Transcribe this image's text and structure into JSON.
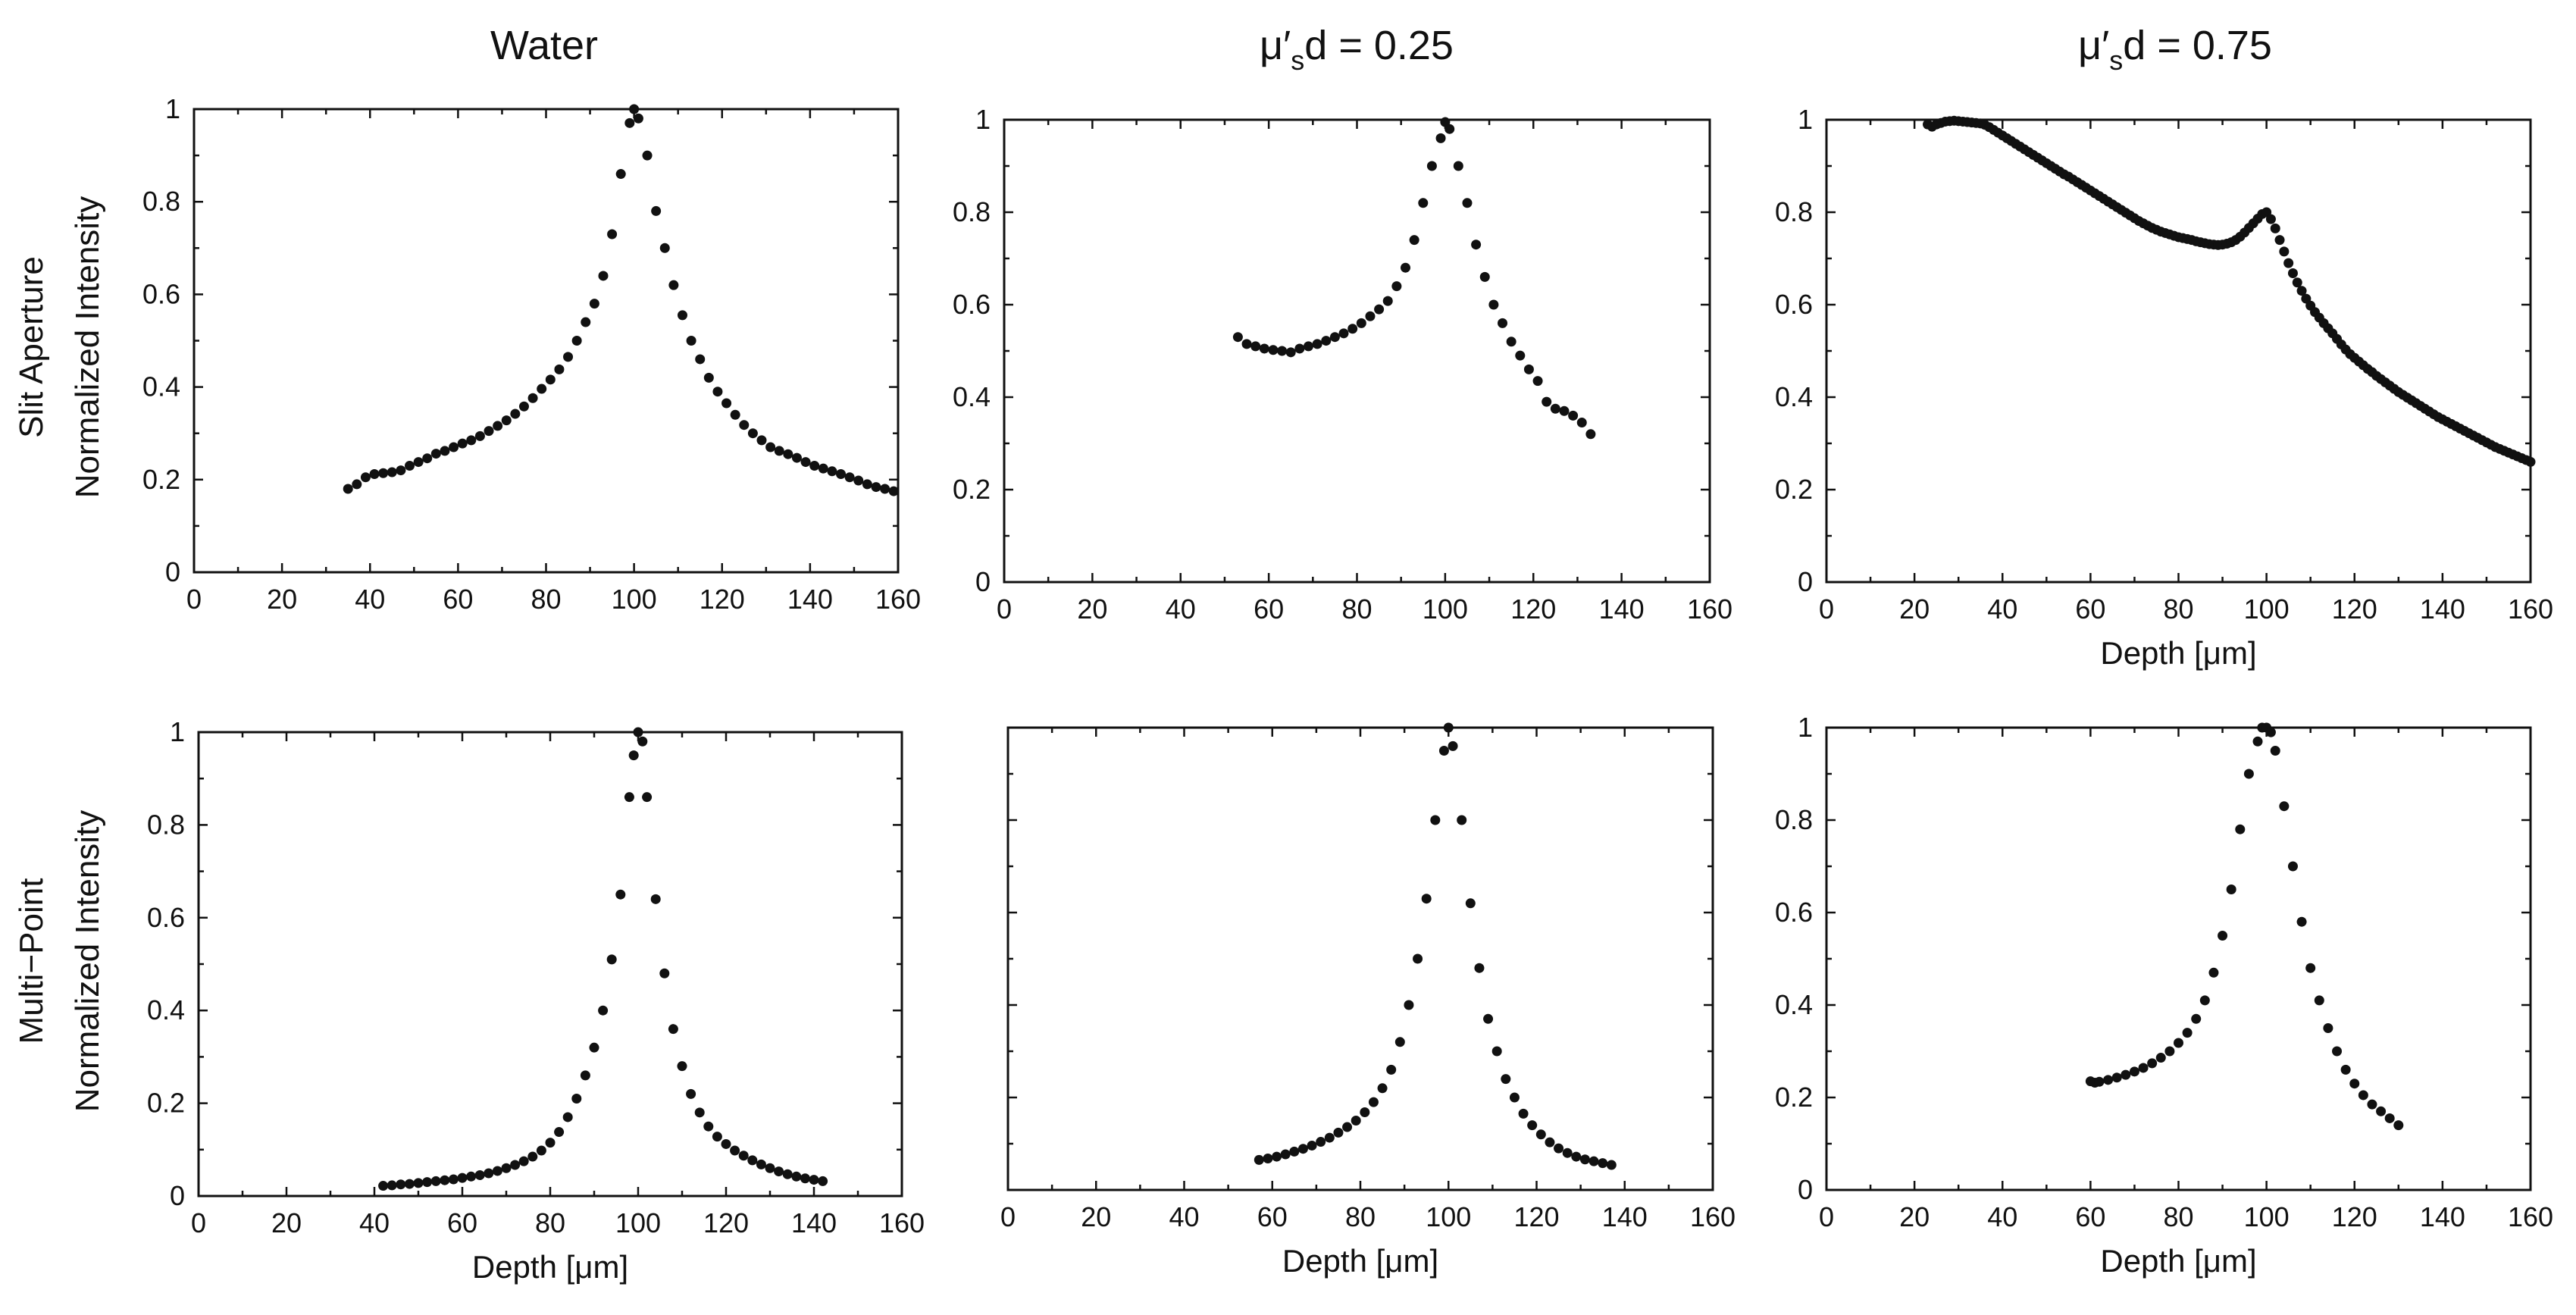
{
  "figure": {
    "column_titles": [
      {
        "text": "Water"
      },
      {
        "prefix": "μ′",
        "sub": "s",
        "suffix": "d = 0.25"
      },
      {
        "prefix": "μ′",
        "sub": "s",
        "suffix": "d = 0.75"
      }
    ],
    "row_labels": [
      [
        "Slit Aperture",
        "Normalized Intensity"
      ],
      [
        "Multi−Point",
        "Normalized Intensity"
      ]
    ]
  },
  "chart_data": [
    {
      "id": "slit-water",
      "type": "scatter",
      "title": "Water",
      "xlabel": "",
      "ylabel": "Normalized Intensity",
      "xlim": [
        0,
        160
      ],
      "ylim": [
        0,
        1
      ],
      "x_step": 20,
      "y_step": 0.2,
      "show_y_ticklabels": true,
      "x": [
        35,
        37,
        39,
        41,
        43,
        45,
        47,
        49,
        51,
        53,
        55,
        57,
        59,
        61,
        63,
        65,
        67,
        69,
        71,
        73,
        75,
        77,
        79,
        81,
        83,
        85,
        87,
        89,
        91,
        93,
        95,
        97,
        99,
        100,
        101,
        103,
        105,
        107,
        109,
        111,
        113,
        115,
        117,
        119,
        121,
        123,
        125,
        127,
        129,
        131,
        133,
        135,
        137,
        139,
        141,
        143,
        145,
        147,
        149,
        151,
        153,
        155,
        157,
        159
      ],
      "y": [
        0.18,
        0.19,
        0.205,
        0.212,
        0.214,
        0.216,
        0.22,
        0.23,
        0.238,
        0.246,
        0.256,
        0.262,
        0.27,
        0.278,
        0.285,
        0.294,
        0.305,
        0.316,
        0.328,
        0.342,
        0.358,
        0.376,
        0.396,
        0.416,
        0.438,
        0.465,
        0.5,
        0.54,
        0.58,
        0.64,
        0.73,
        0.86,
        0.97,
        1.0,
        0.98,
        0.9,
        0.78,
        0.7,
        0.62,
        0.555,
        0.5,
        0.46,
        0.42,
        0.39,
        0.365,
        0.34,
        0.318,
        0.3,
        0.285,
        0.27,
        0.262,
        0.255,
        0.247,
        0.238,
        0.23,
        0.224,
        0.218,
        0.212,
        0.205,
        0.198,
        0.19,
        0.184,
        0.18,
        0.175
      ]
    },
    {
      "id": "slit-025",
      "type": "scatter",
      "title": "μ′sd = 0.25",
      "xlabel": "",
      "ylabel": "",
      "xlim": [
        0,
        160
      ],
      "ylim": [
        0,
        1
      ],
      "x_step": 20,
      "y_step": 0.2,
      "show_y_ticklabels": true,
      "x": [
        53,
        55,
        57,
        59,
        61,
        63,
        65,
        67,
        69,
        71,
        73,
        75,
        77,
        79,
        81,
        83,
        85,
        87,
        89,
        91,
        93,
        95,
        97,
        99,
        100,
        101,
        103,
        105,
        107,
        109,
        111,
        113,
        115,
        117,
        119,
        121,
        123,
        125,
        127,
        129,
        131,
        133
      ],
      "y": [
        0.53,
        0.515,
        0.51,
        0.505,
        0.502,
        0.5,
        0.497,
        0.505,
        0.51,
        0.515,
        0.522,
        0.53,
        0.538,
        0.548,
        0.56,
        0.575,
        0.59,
        0.608,
        0.64,
        0.68,
        0.74,
        0.82,
        0.9,
        0.96,
        0.995,
        0.98,
        0.9,
        0.82,
        0.73,
        0.66,
        0.6,
        0.56,
        0.52,
        0.49,
        0.46,
        0.435,
        0.39,
        0.375,
        0.37,
        0.36,
        0.345,
        0.32
      ]
    },
    {
      "id": "slit-075",
      "type": "scatter",
      "title": "μ′sd = 0.75",
      "xlabel": "Depth [μm]",
      "ylabel": "",
      "xlim": [
        0,
        160
      ],
      "ylim": [
        0,
        1
      ],
      "x_step": 20,
      "y_step": 0.2,
      "show_y_ticklabels": true,
      "x": [
        23,
        24,
        25,
        26,
        27,
        28,
        29,
        30,
        31,
        32,
        33,
        34,
        35,
        36,
        37,
        38,
        39,
        40,
        41,
        42,
        43,
        44,
        45,
        46,
        47,
        48,
        49,
        50,
        51,
        52,
        53,
        54,
        55,
        56,
        57,
        58,
        59,
        60,
        61,
        62,
        63,
        64,
        65,
        66,
        67,
        68,
        69,
        70,
        71,
        72,
        73,
        74,
        75,
        76,
        77,
        78,
        79,
        80,
        81,
        82,
        83,
        84,
        85,
        86,
        87,
        88,
        89,
        90,
        91,
        92,
        93,
        94,
        95,
        96,
        97,
        98,
        99,
        100,
        101,
        102,
        103,
        104,
        105,
        106,
        107,
        108,
        109,
        110,
        111,
        112,
        113,
        114,
        115,
        116,
        117,
        118,
        119,
        120,
        121,
        122,
        123,
        124,
        125,
        126,
        127,
        128,
        129,
        130,
        131,
        132,
        133,
        134,
        135,
        136,
        137,
        138,
        139,
        140,
        141,
        142,
        143,
        144,
        145,
        146,
        147,
        148,
        149,
        150,
        151,
        152,
        153,
        154,
        155,
        156,
        157,
        158,
        159,
        160
      ],
      "y": [
        0.99,
        0.985,
        0.99,
        0.993,
        0.996,
        0.997,
        0.998,
        0.997,
        0.996,
        0.995,
        0.994,
        0.993,
        0.992,
        0.989,
        0.984,
        0.978,
        0.972,
        0.966,
        0.96,
        0.954,
        0.948,
        0.942,
        0.936,
        0.93,
        0.924,
        0.918,
        0.912,
        0.906,
        0.9,
        0.894,
        0.888,
        0.882,
        0.877,
        0.871,
        0.865,
        0.859,
        0.853,
        0.847,
        0.841,
        0.835,
        0.829,
        0.823,
        0.817,
        0.811,
        0.805,
        0.799,
        0.793,
        0.787,
        0.781,
        0.776,
        0.771,
        0.766,
        0.762,
        0.758,
        0.755,
        0.752,
        0.749,
        0.746,
        0.744,
        0.742,
        0.74,
        0.737,
        0.735,
        0.733,
        0.731,
        0.73,
        0.729,
        0.73,
        0.732,
        0.735,
        0.74,
        0.747,
        0.756,
        0.766,
        0.776,
        0.786,
        0.796,
        0.8,
        0.785,
        0.765,
        0.74,
        0.715,
        0.69,
        0.668,
        0.648,
        0.63,
        0.613,
        0.598,
        0.584,
        0.572,
        0.56,
        0.549,
        0.538,
        0.526,
        0.514,
        0.503,
        0.493,
        0.485,
        0.477,
        0.469,
        0.461,
        0.454,
        0.446,
        0.439,
        0.432,
        0.425,
        0.418,
        0.411,
        0.405,
        0.399,
        0.393,
        0.387,
        0.381,
        0.375,
        0.369,
        0.363,
        0.357,
        0.352,
        0.347,
        0.342,
        0.337,
        0.332,
        0.327,
        0.322,
        0.317,
        0.312,
        0.307,
        0.302,
        0.297,
        0.292,
        0.288,
        0.284,
        0.28,
        0.276,
        0.272,
        0.268,
        0.264,
        0.26
      ]
    },
    {
      "id": "multi-water",
      "type": "scatter",
      "title": "",
      "xlabel": "Depth [μm]",
      "ylabel": "Normalized Intensity",
      "xlim": [
        0,
        160
      ],
      "ylim": [
        0,
        1
      ],
      "x_step": 20,
      "y_step": 0.2,
      "show_y_ticklabels": true,
      "x": [
        42,
        44,
        46,
        48,
        50,
        52,
        54,
        56,
        58,
        60,
        62,
        64,
        66,
        68,
        70,
        72,
        74,
        76,
        78,
        80,
        82,
        84,
        86,
        88,
        90,
        92,
        94,
        96,
        98,
        99,
        100,
        101,
        102,
        104,
        106,
        108,
        110,
        112,
        114,
        116,
        118,
        120,
        122,
        124,
        126,
        128,
        130,
        132,
        134,
        136,
        138,
        140,
        142
      ],
      "y": [
        0.022,
        0.023,
        0.025,
        0.026,
        0.028,
        0.03,
        0.032,
        0.034,
        0.036,
        0.039,
        0.042,
        0.045,
        0.049,
        0.054,
        0.06,
        0.067,
        0.075,
        0.085,
        0.098,
        0.115,
        0.138,
        0.17,
        0.21,
        0.26,
        0.32,
        0.4,
        0.51,
        0.65,
        0.86,
        0.95,
        1.0,
        0.98,
        0.86,
        0.64,
        0.48,
        0.36,
        0.28,
        0.22,
        0.18,
        0.15,
        0.128,
        0.112,
        0.098,
        0.087,
        0.077,
        0.068,
        0.06,
        0.053,
        0.047,
        0.042,
        0.038,
        0.035,
        0.032
      ]
    },
    {
      "id": "multi-025",
      "type": "scatter",
      "title": "",
      "xlabel": "Depth [μm]",
      "ylabel": "",
      "xlim": [
        0,
        160
      ],
      "ylim": [
        0,
        1
      ],
      "x_step": 20,
      "y_step": 0.2,
      "show_y_ticklabels": false,
      "x": [
        57,
        59,
        61,
        63,
        65,
        67,
        69,
        71,
        73,
        75,
        77,
        79,
        81,
        83,
        85,
        87,
        89,
        91,
        93,
        95,
        97,
        99,
        100,
        101,
        103,
        105,
        107,
        109,
        111,
        113,
        115,
        117,
        119,
        121,
        123,
        125,
        127,
        129,
        131,
        133,
        135,
        137
      ],
      "y": [
        0.065,
        0.068,
        0.072,
        0.077,
        0.083,
        0.089,
        0.096,
        0.104,
        0.113,
        0.124,
        0.136,
        0.15,
        0.168,
        0.19,
        0.22,
        0.26,
        0.32,
        0.4,
        0.5,
        0.63,
        0.8,
        0.95,
        1.0,
        0.96,
        0.8,
        0.62,
        0.48,
        0.37,
        0.3,
        0.24,
        0.2,
        0.165,
        0.14,
        0.12,
        0.103,
        0.09,
        0.08,
        0.072,
        0.066,
        0.062,
        0.058,
        0.054
      ]
    },
    {
      "id": "multi-075",
      "type": "scatter",
      "title": "",
      "xlabel": "Depth [μm]",
      "ylabel": "",
      "xlim": [
        0,
        160
      ],
      "ylim": [
        0,
        1
      ],
      "x_step": 20,
      "y_step": 0.2,
      "show_y_ticklabels": true,
      "x": [
        60,
        61,
        62,
        64,
        66,
        68,
        70,
        72,
        74,
        76,
        78,
        80,
        82,
        84,
        86,
        88,
        90,
        92,
        94,
        96,
        98,
        99,
        100,
        101,
        102,
        104,
        106,
        108,
        110,
        112,
        114,
        116,
        118,
        120,
        122,
        124,
        126,
        128,
        130
      ],
      "y": [
        0.235,
        0.232,
        0.234,
        0.238,
        0.243,
        0.249,
        0.256,
        0.264,
        0.274,
        0.286,
        0.3,
        0.318,
        0.34,
        0.37,
        0.41,
        0.47,
        0.55,
        0.65,
        0.78,
        0.9,
        0.97,
        1.0,
        1.0,
        0.99,
        0.95,
        0.83,
        0.7,
        0.58,
        0.48,
        0.41,
        0.35,
        0.3,
        0.26,
        0.23,
        0.205,
        0.185,
        0.17,
        0.155,
        0.14
      ]
    }
  ]
}
